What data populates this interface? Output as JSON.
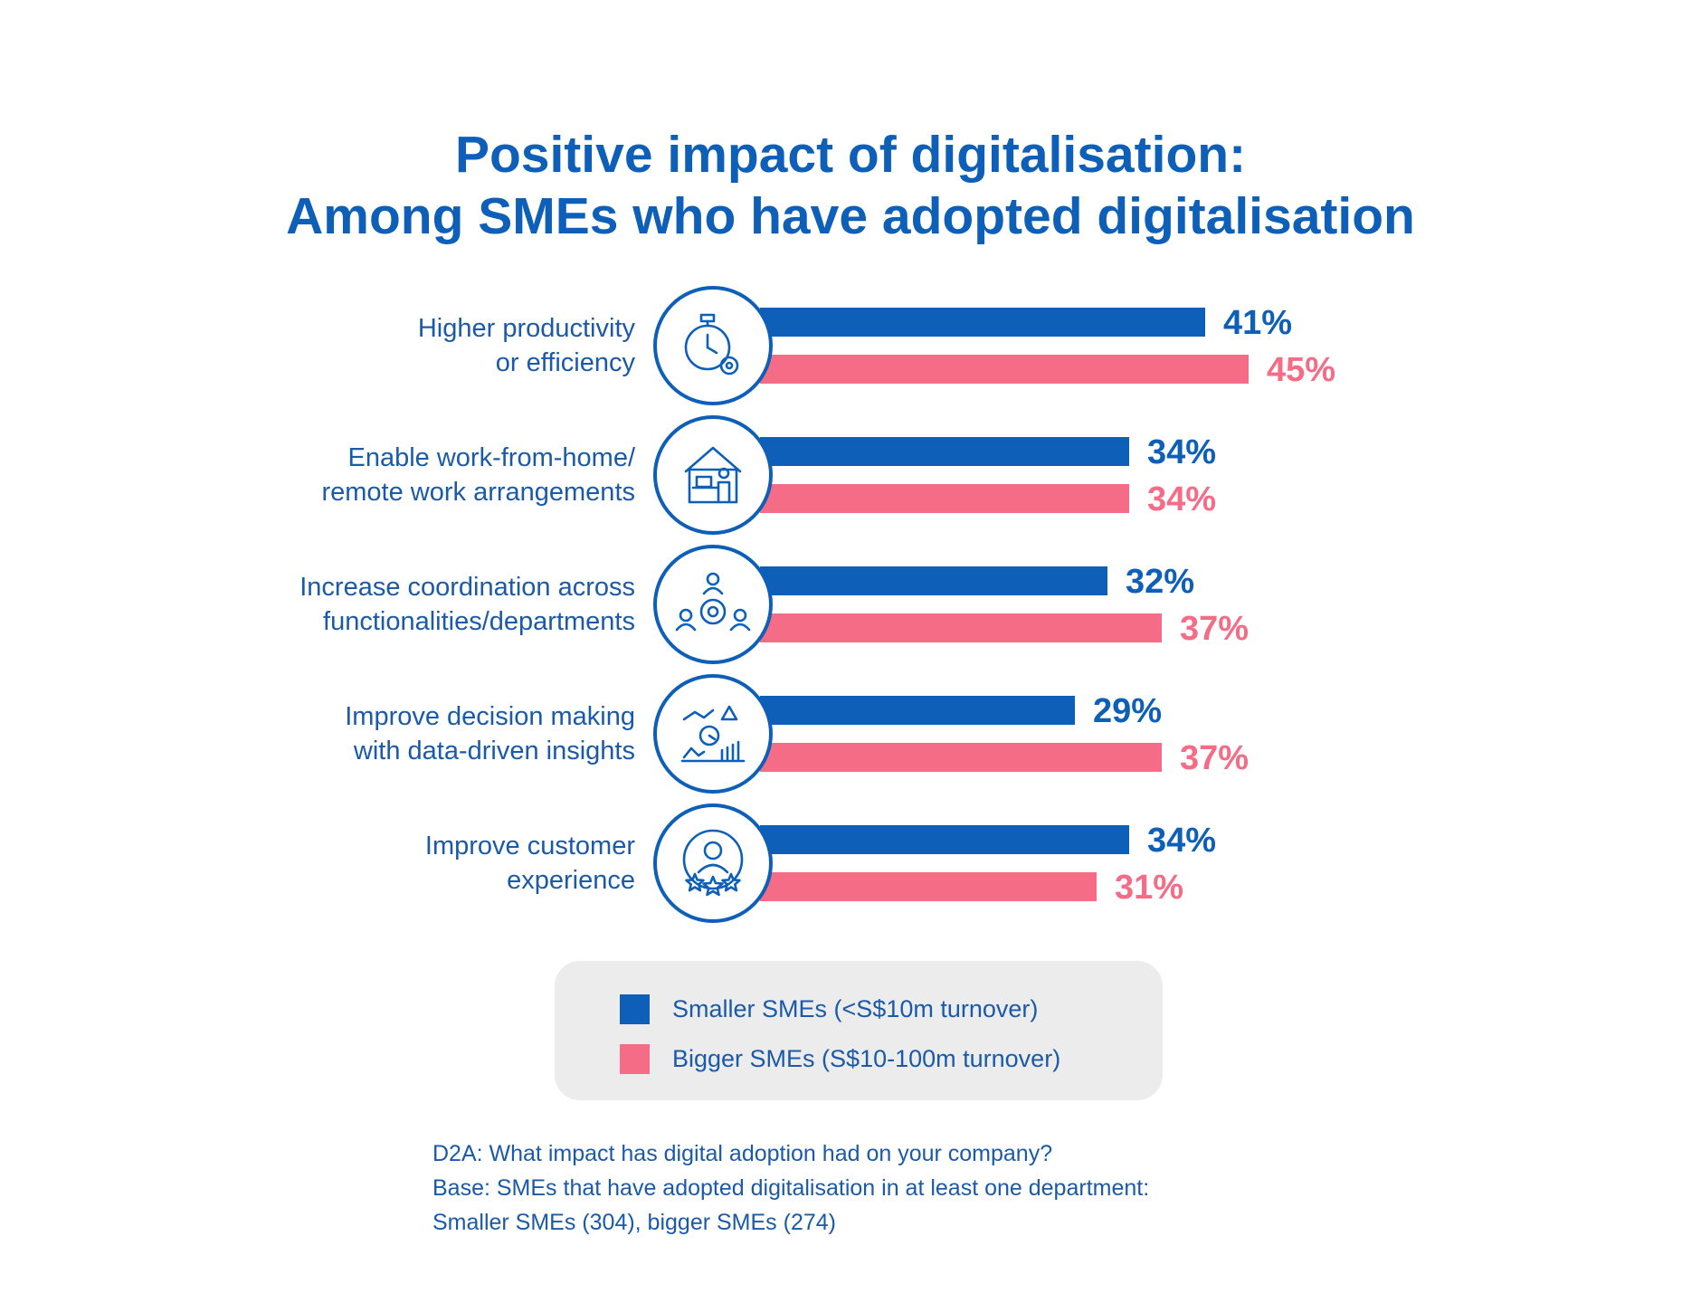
{
  "colors": {
    "smaller": "#0d5fb8",
    "bigger": "#f56c86",
    "title": "#0d5fb8",
    "text": "#1a5aa8"
  },
  "chart_data": {
    "type": "bar",
    "orientation": "horizontal",
    "title_line1": "Positive impact of digitalisation:",
    "title_line2": "Among SMEs who have adopted digitalisation",
    "categories": [
      {
        "line1": "Higher productivity",
        "line2": "or efficiency",
        "icon": "stopwatch-gear-icon"
      },
      {
        "line1": "Enable work-from-home/",
        "line2": "remote work arrangements",
        "icon": "home-office-icon"
      },
      {
        "line1": "Increase coordination across",
        "line2": "functionalities/departments",
        "icon": "team-gear-icon"
      },
      {
        "line1": "Improve decision making",
        "line2": "with data-driven insights",
        "icon": "analytics-icon"
      },
      {
        "line1": "Improve customer",
        "line2": "experience",
        "icon": "customer-star-icon"
      }
    ],
    "series": [
      {
        "name": "Smaller SMEs (<S$10m turnover)",
        "values": [
          41,
          34,
          32,
          29,
          34
        ],
        "labels": [
          "41%",
          "34%",
          "32%",
          "29%",
          "34%"
        ]
      },
      {
        "name": "Bigger SMEs (S$10-100m turnover)",
        "values": [
          45,
          34,
          37,
          37,
          31
        ],
        "labels": [
          "45%",
          "34%",
          "37%",
          "37%",
          "31%"
        ]
      }
    ],
    "xlim": [
      0,
      100
    ],
    "legend_position": "bottom"
  },
  "legend": {
    "smaller": "Smaller SMEs (<S$10m turnover)",
    "bigger": "Bigger SMEs (S$10-100m turnover)"
  },
  "note": {
    "line1": "D2A: What impact has digital adoption had on your company?",
    "line2": "Base: SMEs that have adopted digitalisation in at least one department:",
    "line3": "Smaller SMEs (304), bigger SMEs (274)"
  }
}
